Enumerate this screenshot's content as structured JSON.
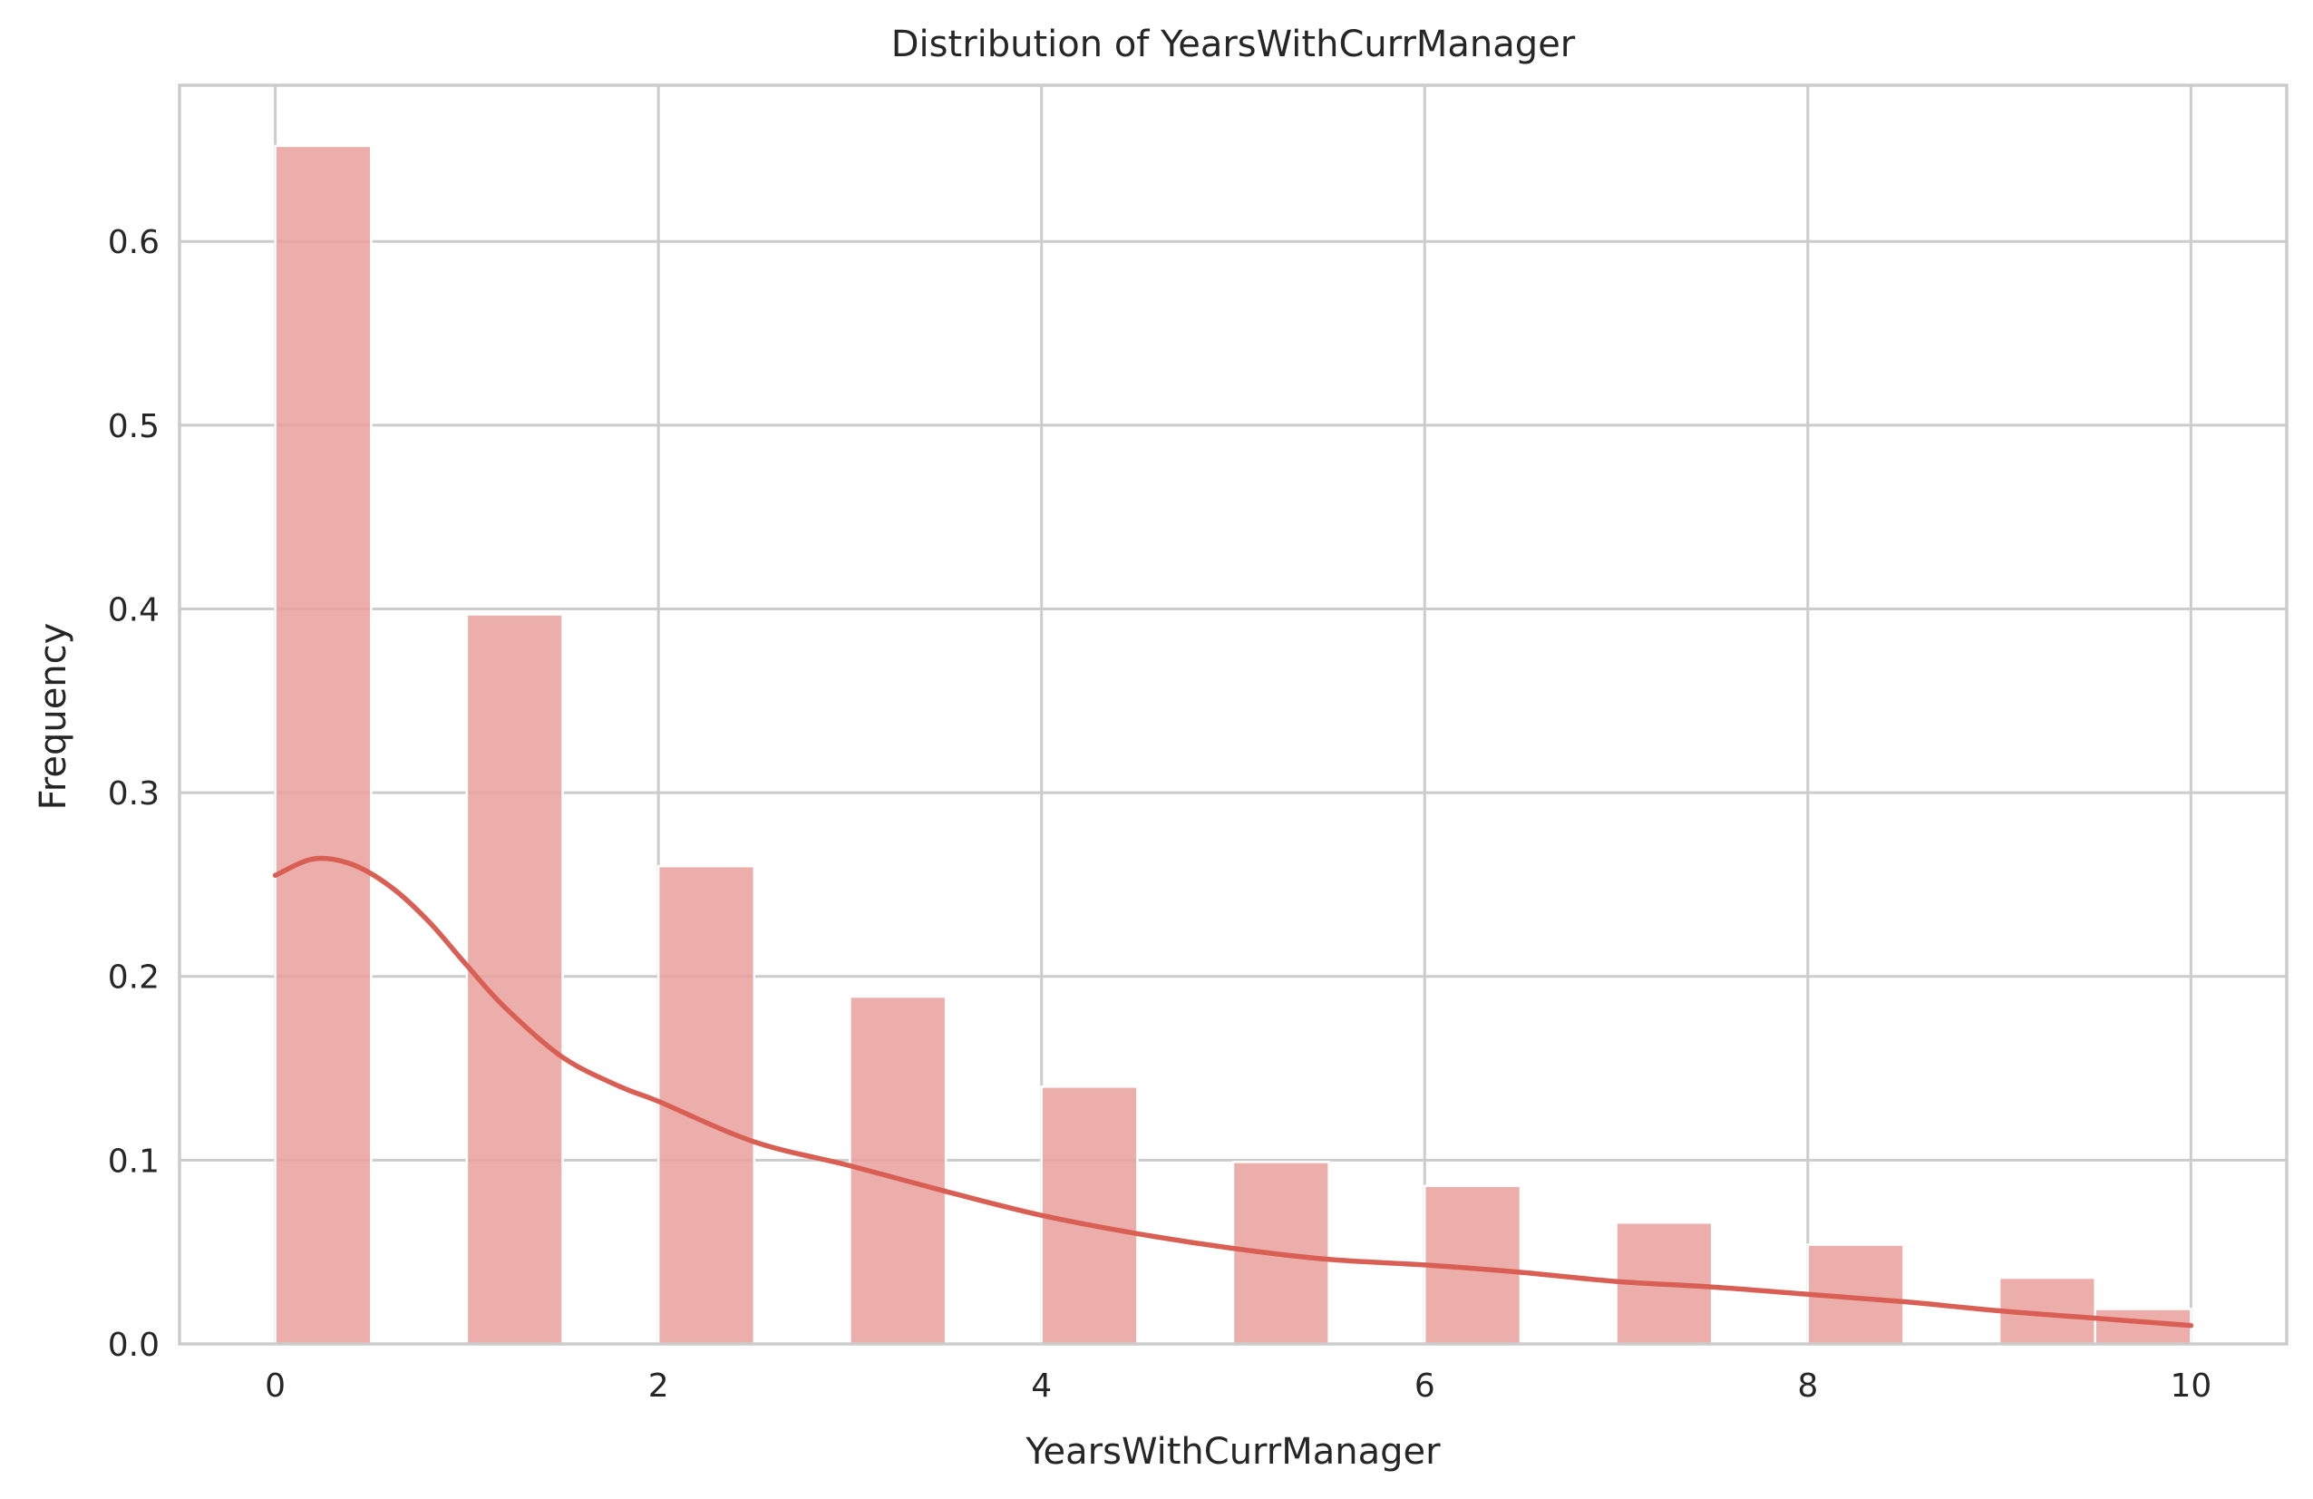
{
  "chart_data": {
    "type": "bar",
    "title": "Distribution of YearsWithCurrManager",
    "xlabel": "YearsWithCurrManager",
    "ylabel": "Frequency",
    "xlim": [
      -0.5,
      10.5
    ],
    "ylim": [
      0,
      0.685
    ],
    "grid": true,
    "x_ticks": [
      {
        "value": 0,
        "label": "0"
      },
      {
        "value": 2,
        "label": "2"
      },
      {
        "value": 4,
        "label": "4"
      },
      {
        "value": 6,
        "label": "6"
      },
      {
        "value": 8,
        "label": "8"
      },
      {
        "value": 10,
        "label": "10"
      }
    ],
    "y_ticks": [
      {
        "value": 0.0,
        "label": "0.0"
      },
      {
        "value": 0.1,
        "label": "0.1"
      },
      {
        "value": 0.2,
        "label": "0.2"
      },
      {
        "value": 0.3,
        "label": "0.3"
      },
      {
        "value": 0.4,
        "label": "0.4"
      },
      {
        "value": 0.5,
        "label": "0.5"
      },
      {
        "value": 0.6,
        "label": "0.6"
      }
    ],
    "bars": [
      {
        "x0": 0.0,
        "x1": 0.5,
        "value": 0.652
      },
      {
        "x0": 1.0,
        "x1": 1.5,
        "value": 0.397
      },
      {
        "x0": 2.0,
        "x1": 2.5,
        "value": 0.26
      },
      {
        "x0": 3.0,
        "x1": 3.5,
        "value": 0.189
      },
      {
        "x0": 4.0,
        "x1": 4.5,
        "value": 0.14
      },
      {
        "x0": 5.0,
        "x1": 5.5,
        "value": 0.099
      },
      {
        "x0": 6.0,
        "x1": 6.5,
        "value": 0.086
      },
      {
        "x0": 7.0,
        "x1": 7.5,
        "value": 0.066
      },
      {
        "x0": 8.0,
        "x1": 8.5,
        "value": 0.054
      },
      {
        "x0": 9.0,
        "x1": 9.5,
        "value": 0.036
      },
      {
        "x0": 9.5,
        "x1": 10.0,
        "value": 0.019
      }
    ],
    "kde": {
      "x": [
        0,
        0.2,
        0.4,
        0.6,
        0.8,
        1.0,
        1.2,
        1.5,
        1.8,
        2.0,
        2.5,
        3.0,
        3.5,
        4.0,
        4.5,
        5.0,
        5.5,
        6.0,
        6.5,
        7.0,
        7.5,
        8.0,
        8.5,
        9.0,
        9.5,
        10.0
      ],
      "y": [
        0.255,
        0.264,
        0.261,
        0.249,
        0.23,
        0.206,
        0.183,
        0.156,
        0.14,
        0.132,
        0.11,
        0.097,
        0.083,
        0.07,
        0.06,
        0.052,
        0.046,
        0.043,
        0.039,
        0.034,
        0.031,
        0.027,
        0.023,
        0.018,
        0.014,
        0.01
      ]
    },
    "colors": {
      "bar": "#e8a09c",
      "kde": "#d95f55",
      "grid": "#cccccc",
      "text": "#262626"
    }
  }
}
